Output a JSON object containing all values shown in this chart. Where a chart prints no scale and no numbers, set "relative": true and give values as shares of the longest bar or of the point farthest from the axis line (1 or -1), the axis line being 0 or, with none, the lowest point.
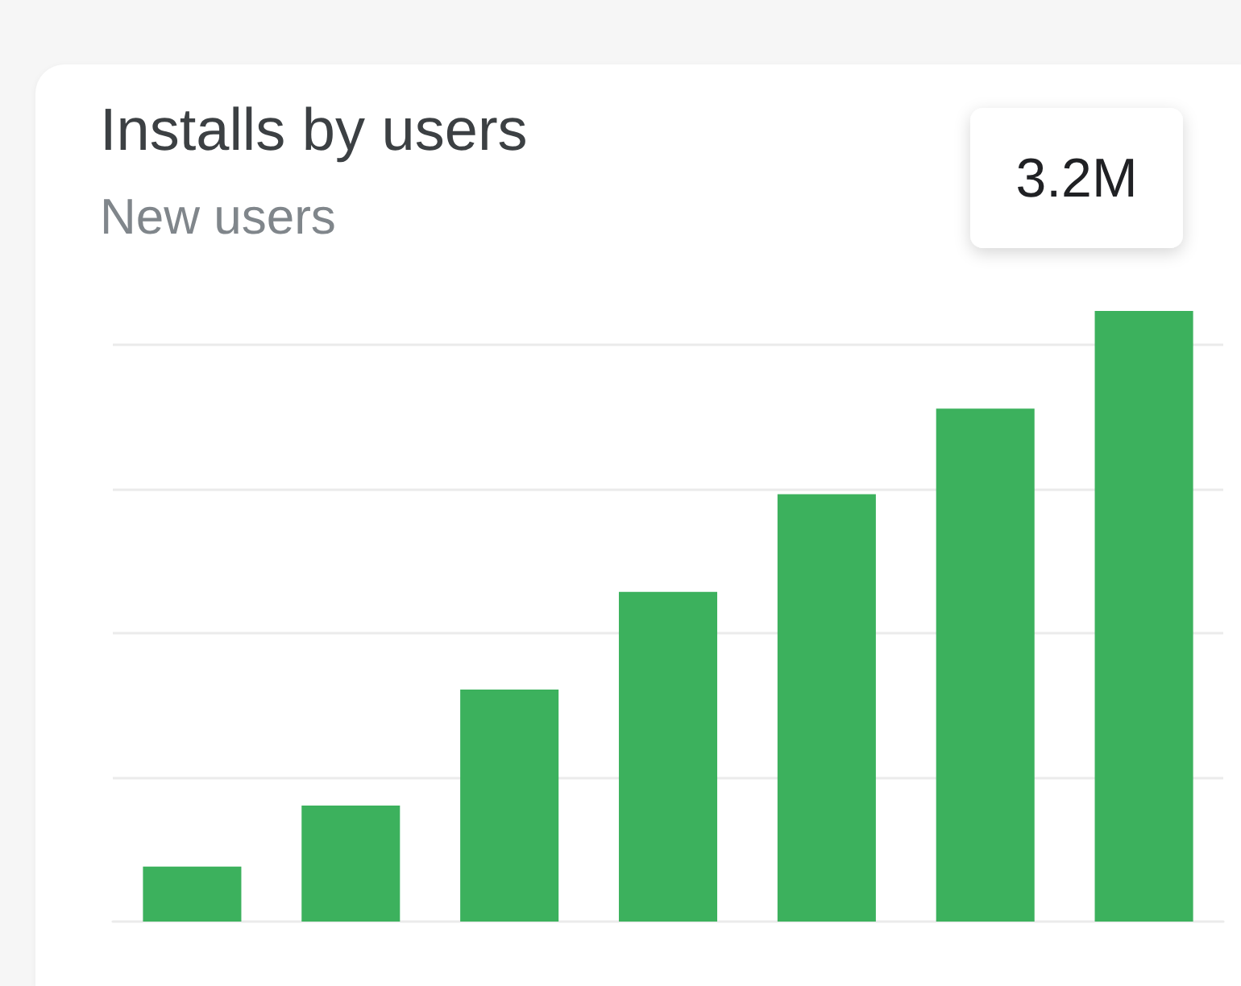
{
  "chart_data": {
    "type": "bar",
    "title": "Installs by users",
    "subtitle": "New users",
    "annotations": [
      "3.2M"
    ],
    "categories": [
      null,
      null,
      null,
      null,
      null,
      null,
      null
    ],
    "values": [
      0.09,
      0.19,
      0.38,
      0.54,
      0.7,
      0.84,
      1
    ],
    "color": "#3cb15d",
    "relative": true,
    "grid": "y"
  }
}
